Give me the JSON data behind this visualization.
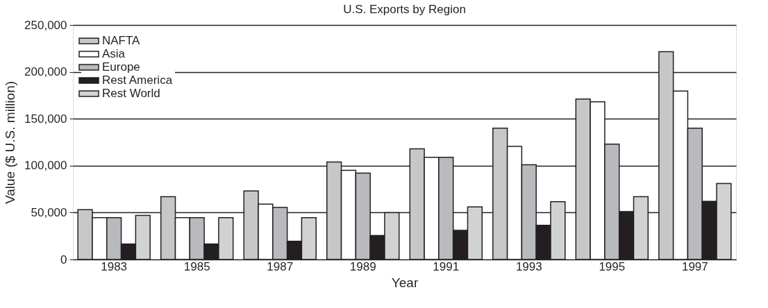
{
  "chart_data": {
    "type": "bar",
    "title": "U.S. Exports by Region",
    "xlabel": "Year",
    "ylabel": "Value ($ U.S. million)",
    "categories": [
      "1983",
      "1985",
      "1987",
      "1989",
      "1991",
      "1993",
      "1995",
      "1997"
    ],
    "series": [
      {
        "name": "NAFTA",
        "color": "#c6c7c9",
        "values": [
          53000,
          67000,
          73000,
          104000,
          118000,
          140000,
          171000,
          221500
        ]
      },
      {
        "name": "Asia",
        "color": "#ffffff",
        "values": [
          44500,
          44500,
          59000,
          95000,
          109000,
          120500,
          168000,
          179500
        ]
      },
      {
        "name": "Europe",
        "color": "#b9babd",
        "values": [
          44500,
          44500,
          55500,
          92000,
          109000,
          101000,
          123000,
          140000
        ]
      },
      {
        "name": "Rest America",
        "color": "#231f20",
        "values": [
          16500,
          16500,
          19500,
          25500,
          31000,
          36500,
          51000,
          62000
        ]
      },
      {
        "name": "Rest World",
        "color": "#d1d2d3",
        "values": [
          47000,
          44500,
          44500,
          50000,
          56000,
          61500,
          67000,
          81000
        ]
      }
    ],
    "ylim": [
      0,
      250000
    ],
    "yticks": [
      0,
      {
        "value": 50000,
        "label": "50,000"
      },
      {
        "value": 100000,
        "label": "100,000"
      },
      {
        "value": 150000,
        "label": "150,000"
      },
      {
        "value": 200000,
        "label": "200,000"
      },
      {
        "value": 250000,
        "label": "250,000"
      }
    ],
    "grid": "y",
    "legend": "top left"
  }
}
